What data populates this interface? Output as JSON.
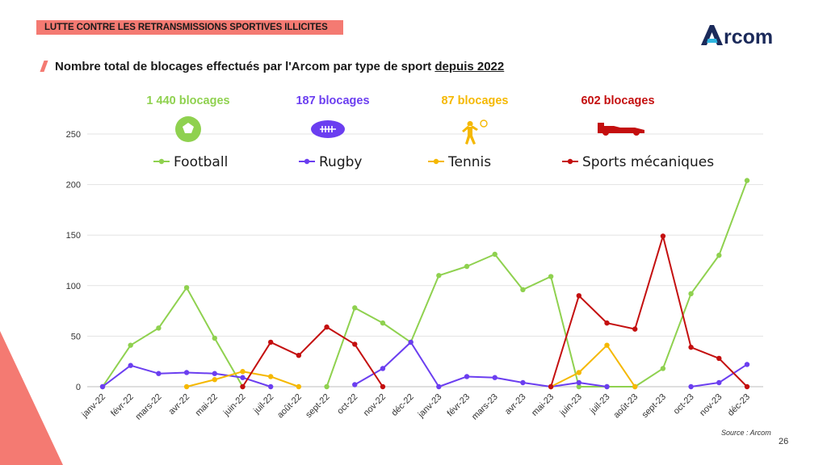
{
  "banner": "LUTTE CONTRE LES RETRANSMISSIONS SPORTIVES ILLICITES",
  "logo": "Arcom",
  "subtitle": {
    "main": "Nombre total de blocages effectués par l'Arcom par type de sport ",
    "underlined": "depuis 2022"
  },
  "totals": [
    {
      "label": "1 440 blocages",
      "color": "#8fd14f",
      "icon": "soccer-ball-icon"
    },
    {
      "label": "187 blocages",
      "color": "#6b3ef0",
      "icon": "american-football-icon"
    },
    {
      "label": "87 blocages",
      "color": "#f5b800",
      "icon": "tennis-player-icon"
    },
    {
      "label": "602 blocages",
      "color": "#c40f0f",
      "icon": "race-car-icon"
    }
  ],
  "source": "Source : Arcom",
  "page_number": "26",
  "chart_data": {
    "type": "line",
    "categories": [
      "janv-22",
      "févr-22",
      "mars-22",
      "avr-22",
      "mai-22",
      "juin-22",
      "juil-22",
      "août-22",
      "sept-22",
      "oct-22",
      "nov-22",
      "déc-22",
      "janv-23",
      "févr-23",
      "mars-23",
      "avr-23",
      "mai-23",
      "juin-23",
      "juil-23",
      "août-23",
      "sept-23",
      "oct-23",
      "nov-23",
      "déc-23"
    ],
    "ylim": [
      0,
      250
    ],
    "yticks": [
      0,
      50,
      100,
      150,
      200,
      250
    ],
    "grid": true,
    "legend_position": "top",
    "series": [
      {
        "name": "Football",
        "color": "#8fd14f",
        "values": [
          0,
          41,
          58,
          98,
          48,
          0,
          null,
          null,
          0,
          78,
          63,
          44,
          110,
          119,
          131,
          96,
          109,
          0,
          0,
          0,
          18,
          92,
          130,
          204
        ]
      },
      {
        "name": "Rugby",
        "color": "#6b3ef0",
        "values": [
          0,
          21,
          13,
          14,
          13,
          9,
          0,
          null,
          null,
          2,
          18,
          44,
          0,
          10,
          9,
          4,
          0,
          4,
          0,
          null,
          null,
          0,
          4,
          22
        ]
      },
      {
        "name": "Tennis",
        "color": "#f5b800",
        "values": [
          null,
          null,
          null,
          0,
          7,
          15,
          10,
          0,
          null,
          null,
          null,
          null,
          null,
          null,
          null,
          null,
          0,
          14,
          41,
          0,
          null,
          null,
          null,
          null
        ]
      },
      {
        "name": "Sports mécaniques",
        "color": "#c40f0f",
        "values": [
          null,
          null,
          null,
          null,
          null,
          0,
          44,
          31,
          59,
          42,
          0,
          null,
          null,
          null,
          null,
          null,
          0,
          90,
          63,
          57,
          149,
          39,
          28,
          0
        ]
      }
    ]
  }
}
